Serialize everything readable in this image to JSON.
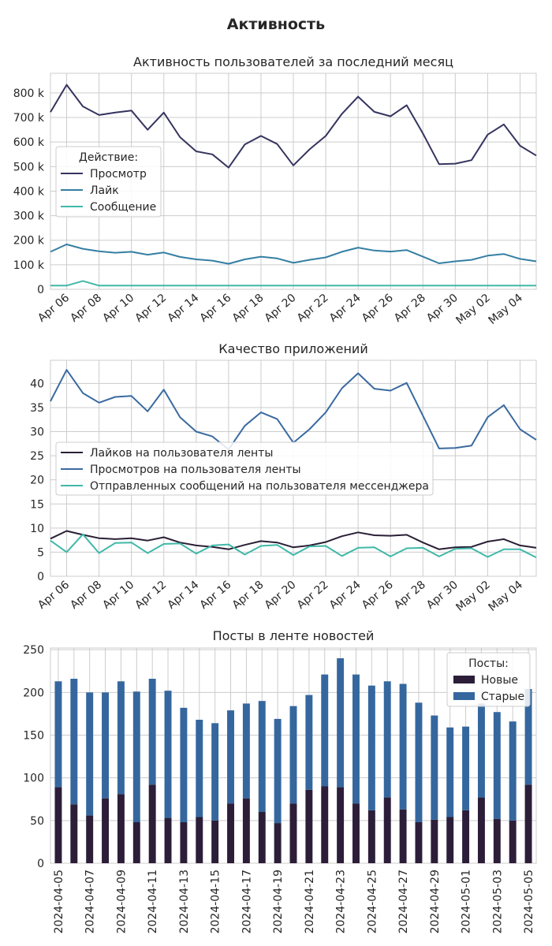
{
  "figure": {
    "title": "Активность"
  },
  "chart_data": [
    {
      "type": "line",
      "title": "Активность пользователей за последний месяц",
      "xlabel": "",
      "ylabel": "",
      "x": [
        "2024-04-05",
        "2024-04-06",
        "2024-04-07",
        "2024-04-08",
        "2024-04-09",
        "2024-04-10",
        "2024-04-11",
        "2024-04-12",
        "2024-04-13",
        "2024-04-14",
        "2024-04-15",
        "2024-04-16",
        "2024-04-17",
        "2024-04-18",
        "2024-04-19",
        "2024-04-20",
        "2024-04-21",
        "2024-04-22",
        "2024-04-23",
        "2024-04-24",
        "2024-04-25",
        "2024-04-26",
        "2024-04-27",
        "2024-04-28",
        "2024-04-29",
        "2024-04-30",
        "2024-05-01",
        "2024-05-02",
        "2024-05-03",
        "2024-05-04",
        "2024-05-05"
      ],
      "xticks": [
        "Apr 06",
        "Apr 08",
        "Apr 10",
        "Apr 12",
        "Apr 14",
        "Apr 16",
        "Apr 18",
        "Apr 20",
        "Apr 22",
        "Apr 24",
        "Apr 26",
        "Apr 28",
        "Apr 30",
        "May 02",
        "May 04"
      ],
      "yticks": [
        "0",
        "100 k",
        "200 k",
        "300 k",
        "400 k",
        "500 k",
        "600 k",
        "700 k",
        "800 k"
      ],
      "ylim": [
        0,
        880000
      ],
      "grid": true,
      "legend": {
        "title": "Действие:",
        "position": "center-left"
      },
      "series": [
        {
          "name": "Просмотр",
          "color": "#35345f",
          "values": [
            722000,
            833000,
            745000,
            710000,
            720000,
            728000,
            650000,
            720000,
            620000,
            562000,
            550000,
            496000,
            590000,
            625000,
            592000,
            505000,
            570000,
            625000,
            715000,
            785000,
            723000,
            705000,
            750000,
            635000,
            510000,
            512000,
            526000,
            630000,
            672000,
            585000,
            545000
          ]
        },
        {
          "name": "Лайк",
          "color": "#347fa3",
          "values": [
            153000,
            183000,
            165000,
            155000,
            149000,
            153000,
            141000,
            150000,
            132000,
            122000,
            117000,
            104000,
            122000,
            133000,
            126000,
            108000,
            120000,
            130000,
            153000,
            170000,
            158000,
            154000,
            160000,
            133000,
            106000,
            114000,
            120000,
            137000,
            144000,
            124000,
            114000
          ]
        },
        {
          "name": "Сообщение",
          "color": "#40b8a8",
          "values": [
            15000,
            15000,
            34000,
            15000,
            15000,
            15000,
            15000,
            15000,
            15000,
            15000,
            15000,
            15000,
            15000,
            15000,
            15000,
            15000,
            15000,
            15000,
            15000,
            15000,
            15000,
            15000,
            15000,
            15000,
            15000,
            15000,
            15000,
            15000,
            15000,
            15000,
            15000
          ]
        }
      ]
    },
    {
      "type": "line",
      "title": "Качество приложений",
      "xlabel": "",
      "ylabel": "",
      "xticks": [
        "Apr 06",
        "Apr 08",
        "Apr 10",
        "Apr 12",
        "Apr 14",
        "Apr 16",
        "Apr 18",
        "Apr 20",
        "Apr 22",
        "Apr 24",
        "Apr 26",
        "Apr 28",
        "Apr 30",
        "May 02",
        "May 04"
      ],
      "yticks": [
        "0",
        "5",
        "10",
        "15",
        "20",
        "25",
        "30",
        "35",
        "40"
      ],
      "ylim": [
        0,
        44.8
      ],
      "grid": true,
      "legend": {
        "title": "",
        "position": "center-left"
      },
      "series": [
        {
          "name": "Лайков на пользователя ленты",
          "color": "#2a1f36",
          "values": [
            7.8,
            9.4,
            8.6,
            7.9,
            7.7,
            7.9,
            7.4,
            8.1,
            7.0,
            6.4,
            6.1,
            5.6,
            6.5,
            7.3,
            7.0,
            6.0,
            6.4,
            7.1,
            8.3,
            9.1,
            8.5,
            8.4,
            8.6,
            7.0,
            5.6,
            6.0,
            6.1,
            7.2,
            7.7,
            6.4,
            5.9
          ]
        },
        {
          "name": "Просмотров на пользователя ленты",
          "color": "#3a6aa0",
          "values": [
            36.3,
            42.8,
            38.0,
            36.0,
            37.2,
            37.4,
            34.2,
            38.7,
            33.0,
            30.0,
            29.0,
            26.3,
            31.2,
            34.0,
            32.6,
            27.7,
            30.5,
            34.0,
            39.0,
            42.1,
            38.9,
            38.5,
            40.1,
            33.3,
            26.5,
            26.6,
            27.1,
            33.0,
            35.5,
            30.5,
            28.3
          ]
        },
        {
          "name": "Отправленных сообщений на пользователя мессенджера",
          "color": "#40b8a8",
          "values": [
            7.4,
            5.0,
            8.7,
            4.8,
            6.9,
            7.0,
            4.8,
            6.7,
            6.8,
            4.7,
            6.4,
            6.6,
            4.5,
            6.3,
            6.5,
            4.4,
            6.2,
            6.3,
            4.2,
            5.9,
            6.0,
            4.1,
            5.8,
            5.9,
            4.1,
            5.7,
            5.8,
            4.0,
            5.6,
            5.6,
            3.9
          ]
        }
      ]
    },
    {
      "type": "bar",
      "stacked": true,
      "title": "Посты в ленте новостей",
      "xlabel": "",
      "ylabel": "",
      "categories": [
        "2024-04-05",
        "2024-04-06",
        "2024-04-07",
        "2024-04-08",
        "2024-04-09",
        "2024-04-10",
        "2024-04-11",
        "2024-04-12",
        "2024-04-13",
        "2024-04-14",
        "2024-04-15",
        "2024-04-16",
        "2024-04-17",
        "2024-04-18",
        "2024-04-19",
        "2024-04-20",
        "2024-04-21",
        "2024-04-22",
        "2024-04-23",
        "2024-04-24",
        "2024-04-25",
        "2024-04-26",
        "2024-04-27",
        "2024-04-28",
        "2024-04-29",
        "2024-04-30",
        "2024-05-01",
        "2024-05-02",
        "2024-05-03",
        "2024-05-04",
        "2024-05-05"
      ],
      "yticks": [
        "0",
        "50",
        "100",
        "150",
        "200",
        "250"
      ],
      "ylim": [
        0,
        252
      ],
      "grid": true,
      "legend": {
        "title": "Посты:",
        "position": "top-right"
      },
      "series": [
        {
          "name": "Новые",
          "color": "#2c1e39",
          "values": [
            89,
            69,
            56,
            76,
            81,
            48,
            92,
            53,
            48,
            54,
            50,
            70,
            76,
            60,
            47,
            70,
            86,
            90,
            89,
            70,
            62,
            77,
            63,
            48,
            51,
            54,
            62,
            77,
            52,
            50,
            92
          ]
        },
        {
          "name": "Старые",
          "color": "#35679e",
          "values": [
            124,
            147,
            144,
            124,
            132,
            153,
            124,
            149,
            134,
            114,
            114,
            109,
            111,
            130,
            122,
            114,
            111,
            131,
            151,
            151,
            146,
            136,
            147,
            140,
            122,
            105,
            98,
            110,
            125,
            116,
            112
          ]
        }
      ]
    }
  ]
}
